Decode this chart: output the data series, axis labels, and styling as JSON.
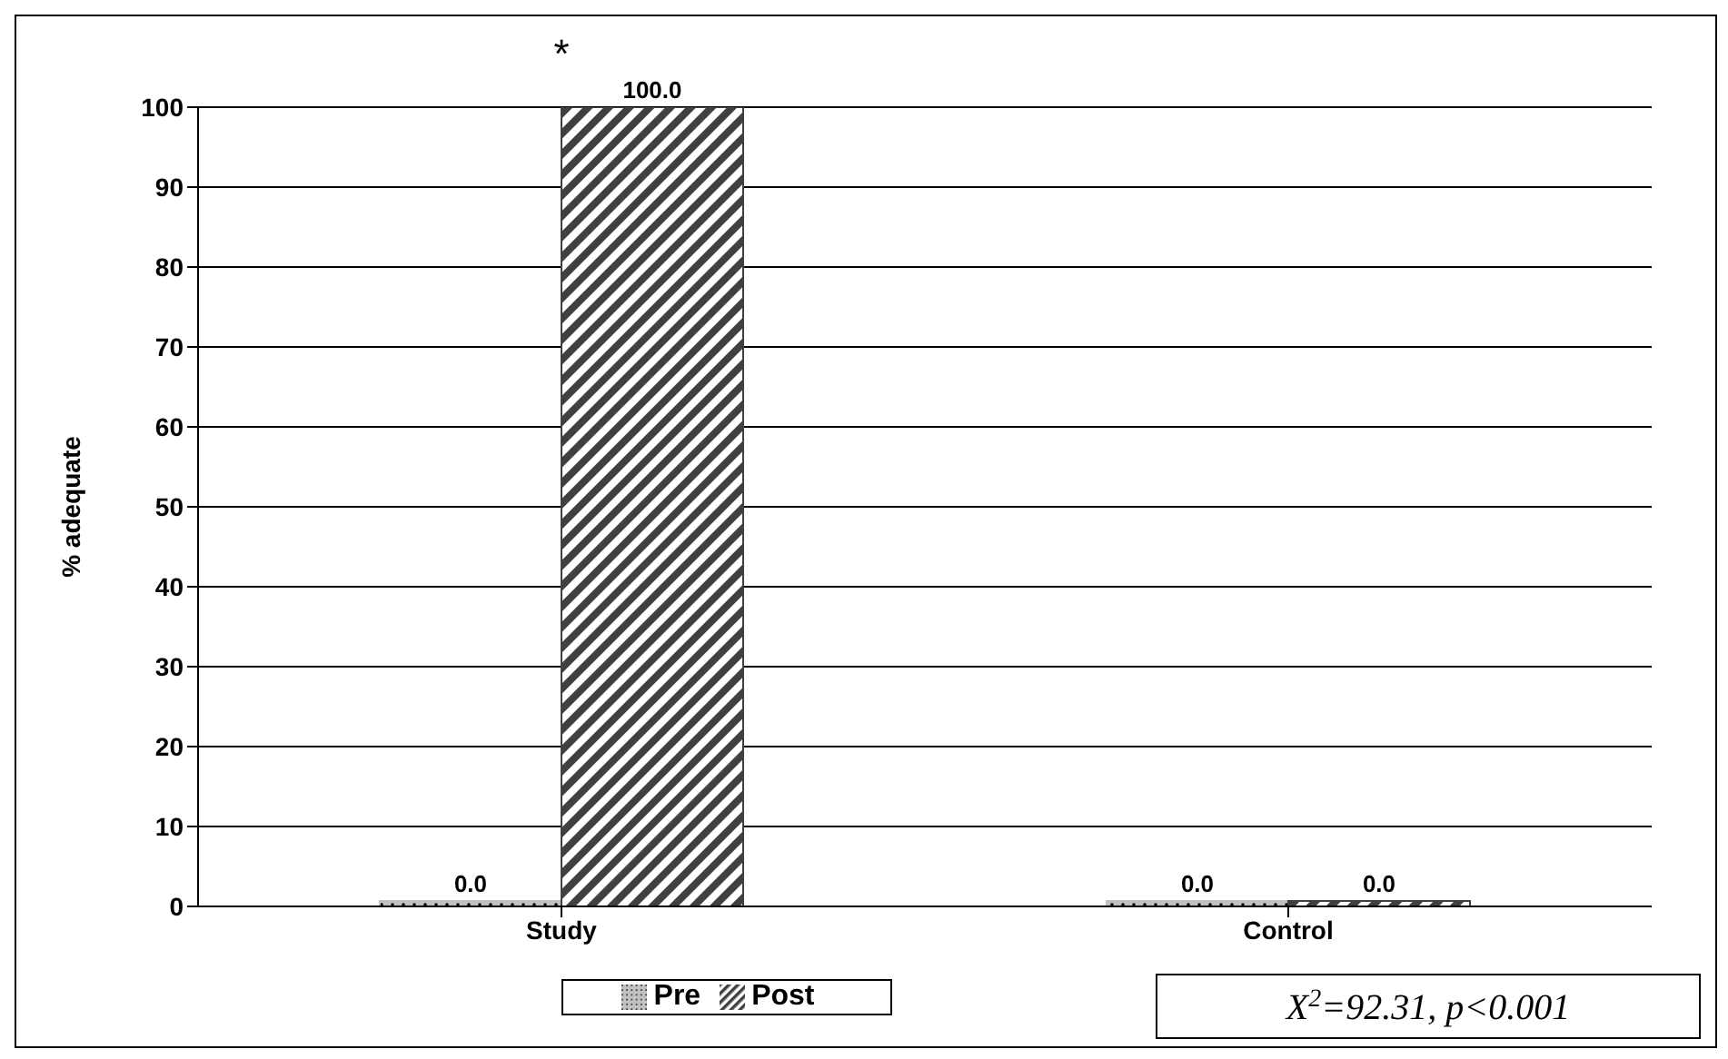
{
  "chart_data": {
    "type": "bar",
    "ylabel": "% adequate",
    "categories": [
      "Study",
      "Control"
    ],
    "series": [
      {
        "name": "Pre",
        "color": "#c0c0c0",
        "values": [
          0,
          0
        ],
        "value_labels": [
          "0.0",
          "0.0"
        ]
      },
      {
        "name": "Post",
        "color": "#404040",
        "values": [
          100,
          0
        ],
        "value_labels": [
          "100.0",
          "0.0"
        ]
      }
    ],
    "ylim": [
      0,
      100
    ],
    "yticks": [
      0,
      10,
      20,
      30,
      40,
      50,
      60,
      70,
      80,
      90,
      100
    ],
    "grid": "y",
    "legend": "bottom",
    "annotations": [
      {
        "text": "*",
        "x": "Study",
        "y": 100
      },
      "X$^{2}$=92.31, p<0.001"
    ]
  }
}
